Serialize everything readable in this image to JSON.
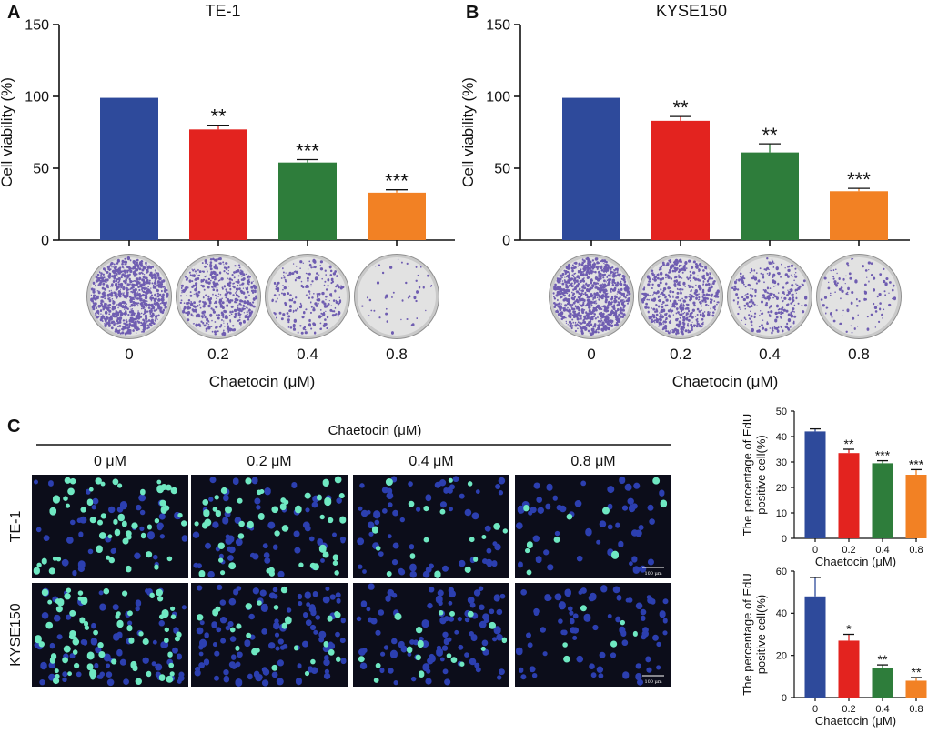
{
  "colors": {
    "blue": "#2E4A9B",
    "red": "#E3231F",
    "green": "#2E7D3B",
    "orange": "#F28124",
    "axis": "#111111",
    "micro_bg": "#0c0d1a",
    "nuclei": "#2c3fb0",
    "edu": "#6fe8c2",
    "stain": "#5b45a8"
  },
  "panels": {
    "A": {
      "letter": "A",
      "title": "TE-1"
    },
    "B": {
      "letter": "B",
      "title": "KYSE150"
    },
    "C": {
      "letter": "C",
      "header": "Chaetocin (μM)",
      "columns": [
        "0 μM",
        "0.2 μM",
        "0.4 μM",
        "0.8 μM"
      ],
      "rows": [
        "TE-1",
        "KYSE150"
      ],
      "scale_bar": "100 μm"
    }
  },
  "chart_data": [
    {
      "id": "A",
      "type": "bar",
      "title": "TE-1",
      "xlabel": "Chaetocin (μM)",
      "ylabel": "Cell viability (%)",
      "categories": [
        "0",
        "0.2",
        "0.4",
        "0.8"
      ],
      "values": [
        99,
        77,
        54,
        33
      ],
      "errors": [
        0,
        3,
        2,
        2
      ],
      "significance": [
        "",
        "**",
        "***",
        "***"
      ],
      "ylim": [
        0,
        150
      ],
      "yticks": [
        0,
        50,
        100,
        150
      ],
      "colors": [
        "#2E4A9B",
        "#E3231F",
        "#2E7D3B",
        "#F28124"
      ]
    },
    {
      "id": "B",
      "type": "bar",
      "title": "KYSE150",
      "xlabel": "Chaetocin (μM)",
      "ylabel": "Cell viability (%)",
      "categories": [
        "0",
        "0.2",
        "0.4",
        "0.8"
      ],
      "values": [
        99,
        83,
        61,
        34
      ],
      "errors": [
        0,
        3,
        6,
        2
      ],
      "significance": [
        "",
        "**",
        "**",
        "***"
      ],
      "ylim": [
        0,
        150
      ],
      "yticks": [
        0,
        50,
        100,
        150
      ],
      "colors": [
        "#2E4A9B",
        "#E3231F",
        "#2E7D3B",
        "#F28124"
      ]
    },
    {
      "id": "C-top",
      "type": "bar",
      "title": "",
      "xlabel": "Chaetocin (μM)",
      "ylabel": "The percentage of EdU positive cell(%)",
      "ylabel_lines": [
        "The percentage of EdU",
        "positive cell(%)"
      ],
      "categories": [
        "0",
        "0.2",
        "0.4",
        "0.8"
      ],
      "values": [
        42,
        33.5,
        29.5,
        25
      ],
      "errors": [
        1,
        1.5,
        1,
        2
      ],
      "significance": [
        "",
        "**",
        "***",
        "***"
      ],
      "ylim": [
        0,
        50
      ],
      "yticks": [
        0,
        10,
        20,
        30,
        40,
        50
      ],
      "colors": [
        "#2E4A9B",
        "#E3231F",
        "#2E7D3B",
        "#F28124"
      ]
    },
    {
      "id": "C-bottom",
      "type": "bar",
      "title": "",
      "xlabel": "Chaetocin (μM)",
      "ylabel": "The percentage of EdU positive cell(%)",
      "ylabel_lines": [
        "The percentage of EdU",
        "positive cell(%)"
      ],
      "categories": [
        "0",
        "0.2",
        "0.4",
        "0.8"
      ],
      "values": [
        48,
        27,
        14,
        8
      ],
      "errors": [
        9,
        3,
        1.5,
        1.5
      ],
      "significance": [
        "",
        "*",
        "**",
        "**"
      ],
      "ylim": [
        0,
        60
      ],
      "yticks": [
        0,
        20,
        40,
        60
      ],
      "colors": [
        "#2E4A9B",
        "#E3231F",
        "#2E7D3B",
        "#F28124"
      ]
    }
  ],
  "colony": [
    {
      "panel": "A",
      "densities": [
        0.95,
        0.55,
        0.25,
        0.05
      ]
    },
    {
      "panel": "B",
      "densities": [
        1.0,
        0.6,
        0.3,
        0.12
      ]
    }
  ],
  "edu_images": {
    "TE-1": [
      {
        "nuclei": 95,
        "edu": 55
      },
      {
        "nuclei": 110,
        "edu": 50
      },
      {
        "nuclei": 80,
        "edu": 18
      },
      {
        "nuclei": 60,
        "edu": 10
      }
    ],
    "KYSE150": [
      {
        "nuclei": 140,
        "edu": 70
      },
      {
        "nuclei": 130,
        "edu": 25
      },
      {
        "nuclei": 110,
        "edu": 18
      },
      {
        "nuclei": 80,
        "edu": 6
      }
    ]
  }
}
